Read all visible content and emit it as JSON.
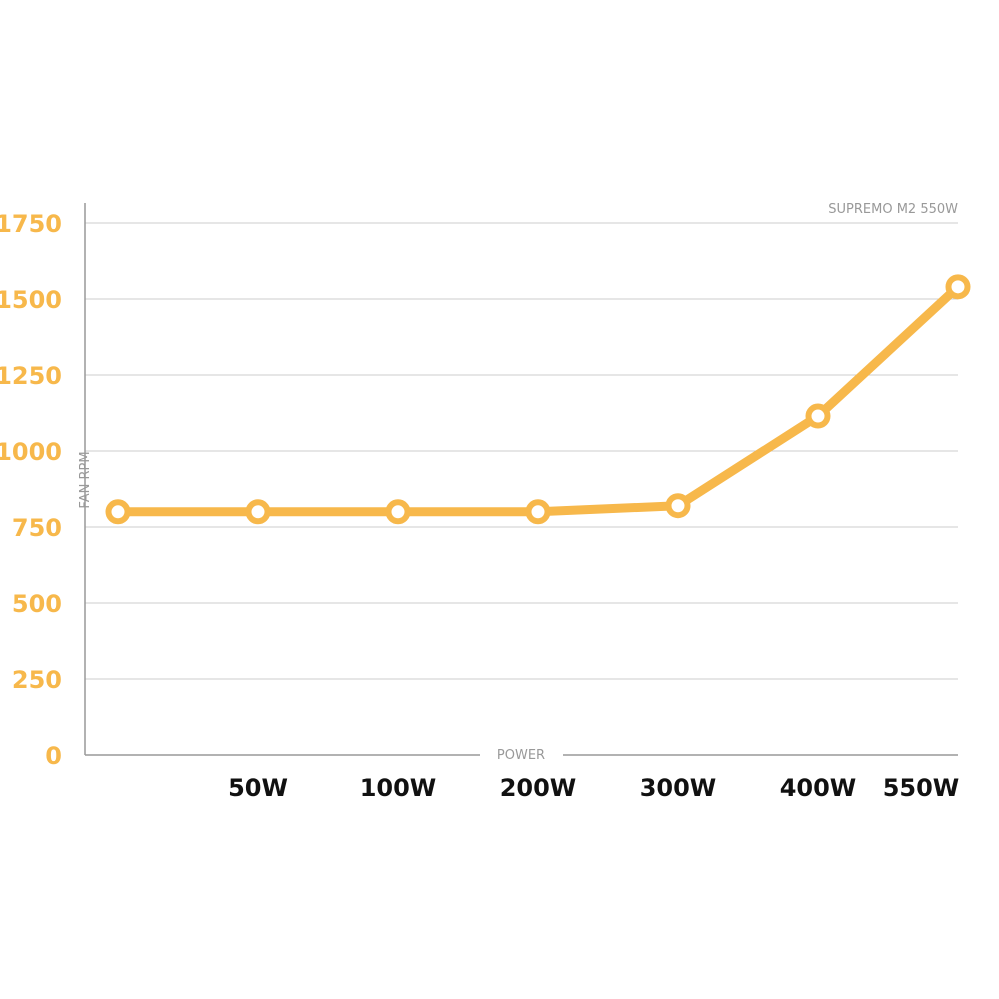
{
  "chart_data": {
    "type": "line",
    "title": "",
    "series_label": "SUPREMO M2 550W",
    "xlabel": "POWER",
    "ylabel": "FAN RPM",
    "categories": [
      "",
      "50W",
      "100W",
      "200W",
      "300W",
      "400W",
      "550W"
    ],
    "ylim": [
      0,
      1750
    ],
    "yticks": [
      0,
      250,
      500,
      750,
      1000,
      1250,
      1500,
      1750
    ],
    "ytick_labels": [
      "0",
      "250",
      "500",
      "750",
      "1000",
      "1250",
      "1500",
      "1750"
    ],
    "series": [
      {
        "name": "SUPREMO M2 550W",
        "values": [
          800,
          800,
          800,
          800,
          820,
          1115,
          1540
        ]
      }
    ],
    "grid": true,
    "colors": {
      "line": "#F7B84B",
      "ytick": "#F7B84B",
      "xtick": "#111111",
      "grid": "#CCCCCC",
      "axis": "#999999",
      "label": "#999999"
    }
  }
}
